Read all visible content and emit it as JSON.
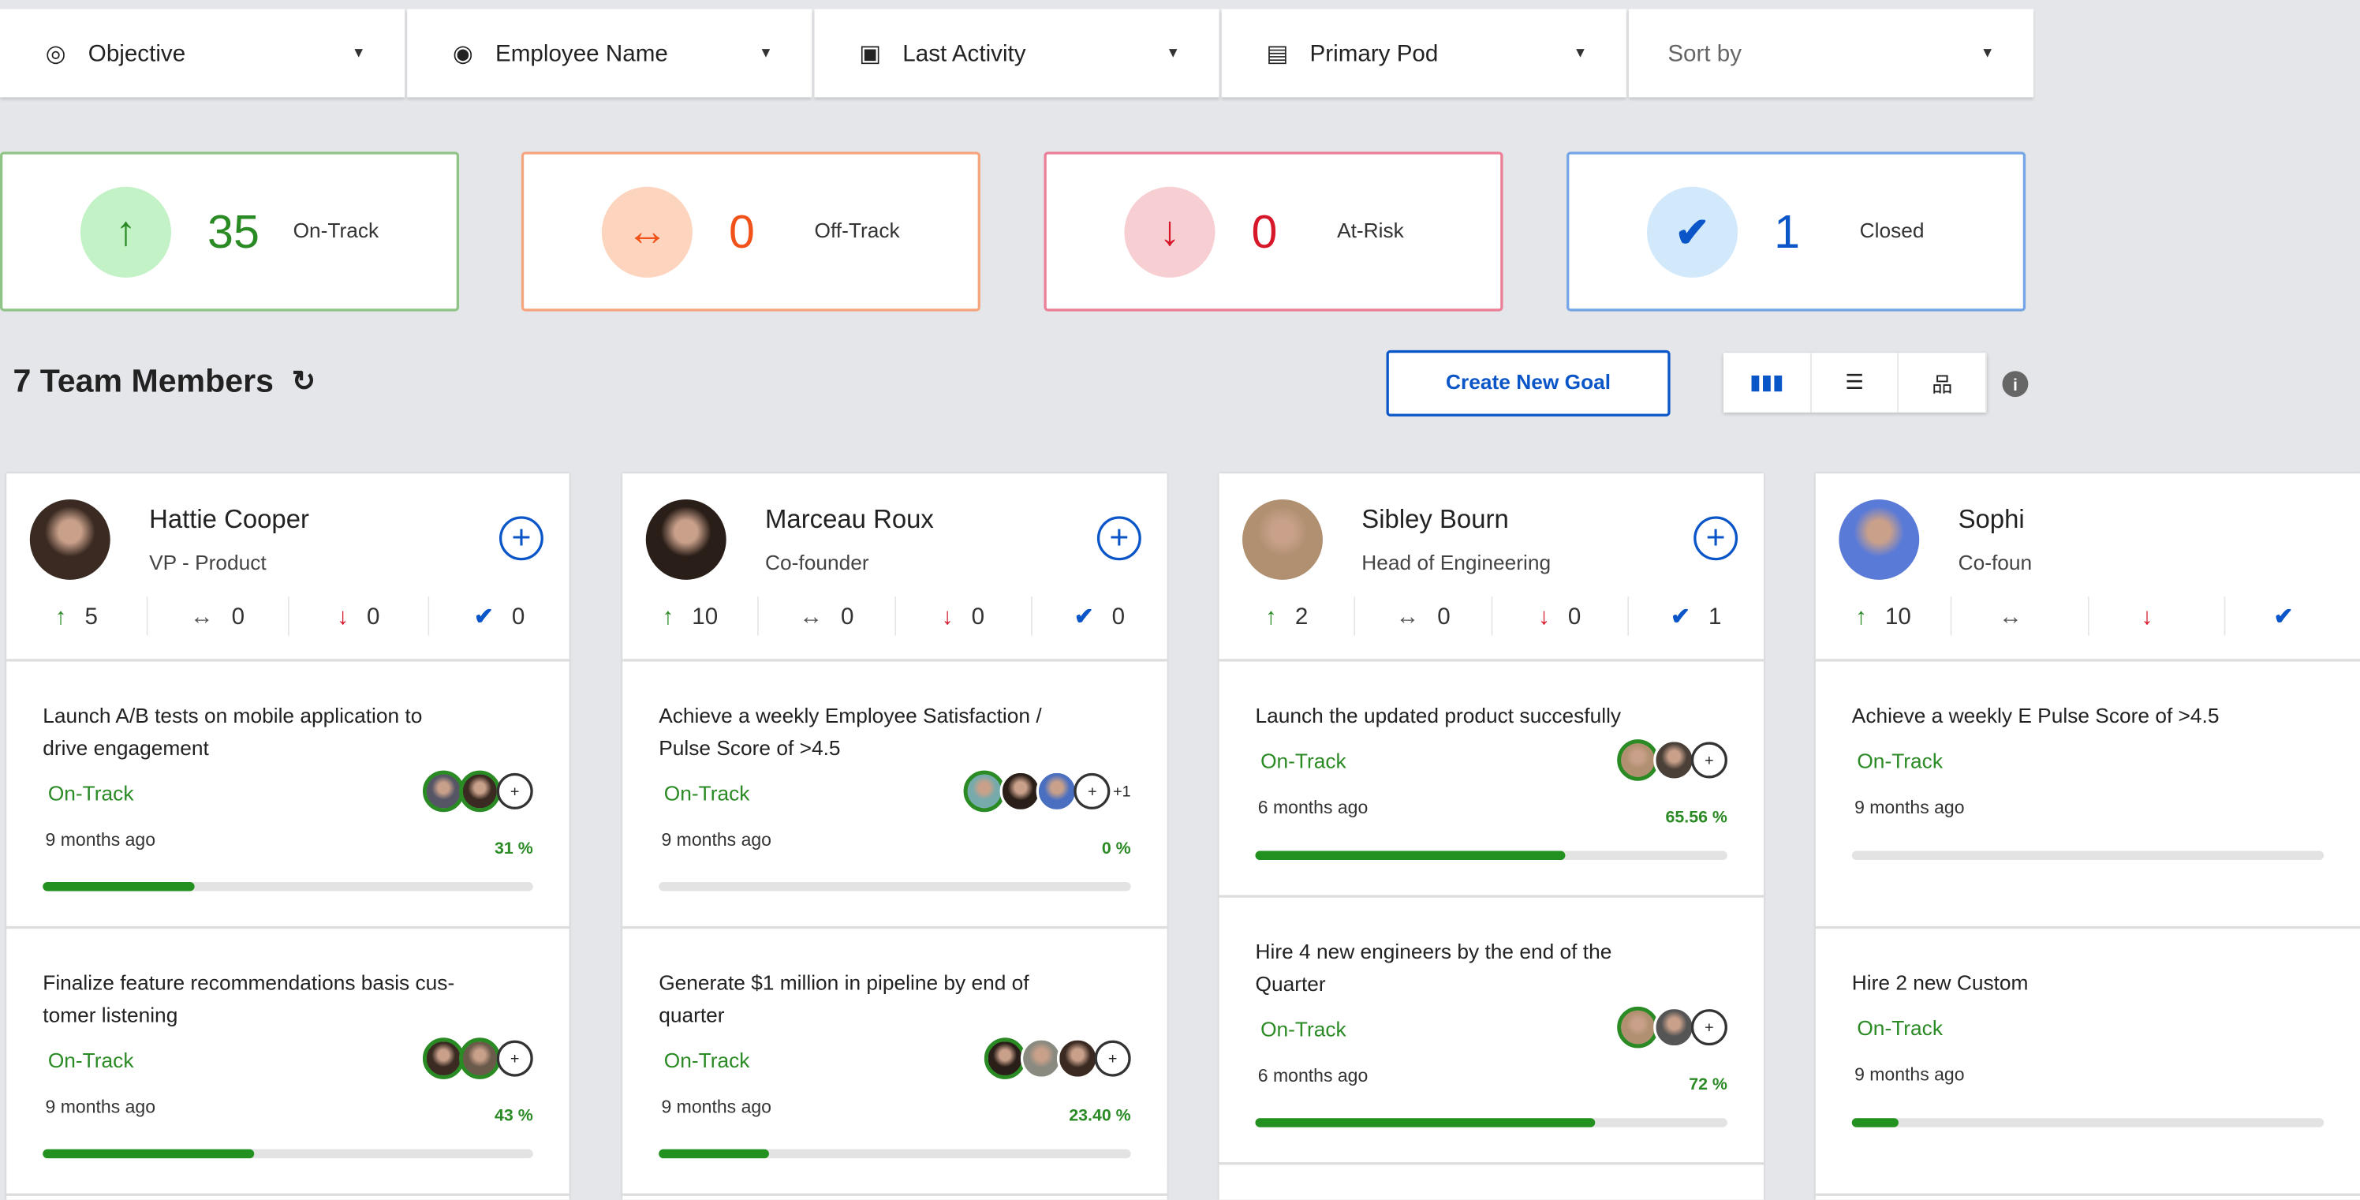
{
  "filters": [
    {
      "label": "Objective",
      "icon": "target-icon"
    },
    {
      "label": "Employee Name",
      "icon": "person-circle-icon"
    },
    {
      "label": "Last Activity",
      "icon": "calendar-icon"
    },
    {
      "label": "Primary Pod",
      "icon": "pod-icon"
    },
    {
      "label": "Sort by",
      "icon": ""
    }
  ],
  "summary": [
    {
      "value": "35",
      "label": "On-Track",
      "color": "#2a8a24",
      "bg": "#c3f2c6",
      "border": "#8fc486",
      "icon": "arrow-up-icon"
    },
    {
      "value": "0",
      "label": "Off-Track",
      "color": "#f0521a",
      "bg": "#fdd4bd",
      "border": "#f5a57e",
      "icon": "arrow-left-right-icon"
    },
    {
      "value": "0",
      "label": "At-Risk",
      "color": "#d7182a",
      "bg": "#f7cfd3",
      "border": "#ec7f98",
      "icon": "arrow-down-icon"
    },
    {
      "value": "1",
      "label": "Closed",
      "color": "#0a55c7",
      "bg": "#d2e8fb",
      "border": "#74a5e6",
      "icon": "check-icon"
    }
  ],
  "team": {
    "title": "7 Team Members",
    "create_label": "Create New Goal"
  },
  "members": [
    {
      "name": "Hattie Cooper",
      "role": "VP - Product",
      "stats": [
        "5",
        "0",
        "0",
        "0"
      ],
      "avatar": "#3a2a22",
      "goals": [
        {
          "title": "Launch A/B tests on mobile application to drive engagement",
          "status": "On-Track",
          "ago": "9 months ago",
          "progress": "31 %",
          "pct": 31,
          "owners": [
            "#556",
            "#3a2a22"
          ],
          "more": ""
        },
        {
          "title": "Finalize feature recommendations basis cus-tomer listening",
          "status": "On-Track",
          "ago": "9 months ago",
          "progress": "43 %",
          "pct": 43,
          "owners": [
            "#3a2a22",
            "#6a5a4a"
          ],
          "more": ""
        }
      ]
    },
    {
      "name": "Marceau Roux",
      "role": "Co-founder",
      "stats": [
        "10",
        "0",
        "0",
        "0"
      ],
      "avatar": "#2a1e18",
      "goals": [
        {
          "title": "Achieve a weekly Employee Satisfaction / Pulse Score of >4.5",
          "status": "On-Track",
          "ago": "9 months ago",
          "progress": "0 %",
          "pct": 0,
          "owners": [
            "#7aa",
            "#2a1e18",
            "#4a6fc0"
          ],
          "more": "+1"
        },
        {
          "title": "Generate $1 million in pipeline by end of quarter",
          "status": "On-Track",
          "ago": "9 months ago",
          "progress": "23.40 %",
          "pct": 23.4,
          "owners": [
            "#2a1e18",
            "#8a8a80",
            "#3a2a22"
          ],
          "more": ""
        }
      ]
    },
    {
      "name": "Sibley Bourn",
      "role": "Head of Engineering",
      "stats": [
        "2",
        "0",
        "0",
        "1"
      ],
      "avatar": "#b09070",
      "goals": [
        {
          "title": "Launch the updated product succesfully",
          "status": "On-Track",
          "ago": "6 months ago",
          "progress": "65.56 %",
          "pct": 65.56,
          "owners": [
            "#b09070",
            "#4a4038"
          ],
          "more": ""
        },
        {
          "title": "Hire 4 new engineers by the end of the Quarter",
          "status": "On-Track",
          "ago": "6 months ago",
          "progress": "72 %",
          "pct": 72,
          "owners": [
            "#b09070",
            "#555"
          ],
          "more": ""
        }
      ]
    },
    {
      "name": "Sophi",
      "role": "Co-foun",
      "stats": [
        "10",
        "",
        "",
        " "
      ],
      "avatar": "#5a7ad8",
      "goals": [
        {
          "title": "Achieve a weekly E Pulse Score of >4.5",
          "status": "On-Track",
          "ago": "9 months ago",
          "progress": "",
          "pct": 0,
          "owners": [],
          "more": ""
        },
        {
          "title": "Hire 2 new Custom",
          "status": "On-Track",
          "ago": "9 months ago",
          "progress": "",
          "pct": 10,
          "owners": [],
          "more": ""
        }
      ]
    }
  ]
}
